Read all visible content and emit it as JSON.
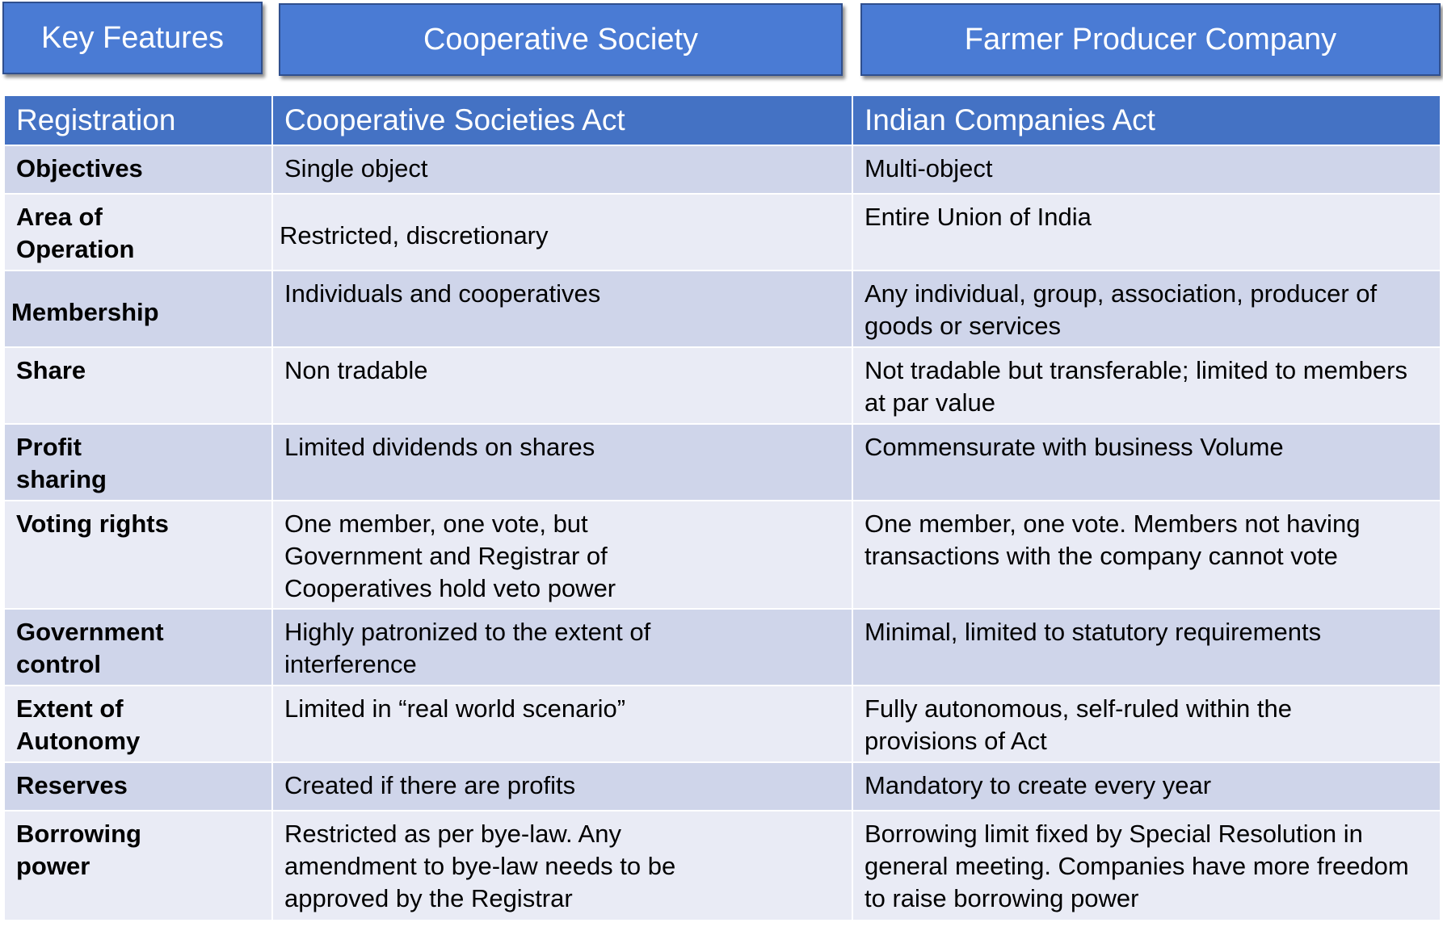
{
  "headers": {
    "key_features": "Key Features",
    "cooperative": "Cooperative Society",
    "fpc": "Farmer Producer Company"
  },
  "rows": [
    {
      "feature": "Registration",
      "cooperative": "Cooperative Societies Act",
      "fpc": "Indian Companies Act"
    },
    {
      "feature": "Objectives",
      "cooperative": "Single object",
      "fpc": "Multi-object"
    },
    {
      "feature": "Area of Operation",
      "cooperative": "Restricted, discretionary",
      "fpc": "Entire Union of India"
    },
    {
      "feature": "Membership",
      "cooperative": "Individuals and cooperatives",
      "fpc": "Any individual, group, association, producer of goods or services"
    },
    {
      "feature": "Share",
      "cooperative": "Non tradable",
      "fpc": "Not tradable but transferable; limited to members at par value"
    },
    {
      "feature": "Profit sharing",
      "cooperative": "Limited dividends on shares",
      "fpc": "Commensurate with business Volume"
    },
    {
      "feature": "Voting rights",
      "cooperative": "One member, one vote, but Government and Registrar of Cooperatives hold veto power",
      "fpc": "One member, one vote. Members not having transactions with the company cannot vote"
    },
    {
      "feature": "Government control",
      "cooperative": "Highly patronized to the extent of interference",
      "fpc": "Minimal, limited to statutory requirements"
    },
    {
      "feature": "Extent of Autonomy",
      "cooperative": "Limited in “real world scenario”",
      "fpc": "Fully autonomous, self-ruled within the provisions of Act"
    },
    {
      "feature": "Reserves",
      "cooperative": "Created if there are profits",
      "fpc": "Mandatory to create every year"
    },
    {
      "feature": "Borrowing power",
      "cooperative": "Restricted as per bye-law. Any amendment to bye-law needs to be approved by the Registrar",
      "fpc": "Borrowing limit fixed by Special Resolution in general meeting. Companies have more freedom to raise borrowing power"
    }
  ]
}
